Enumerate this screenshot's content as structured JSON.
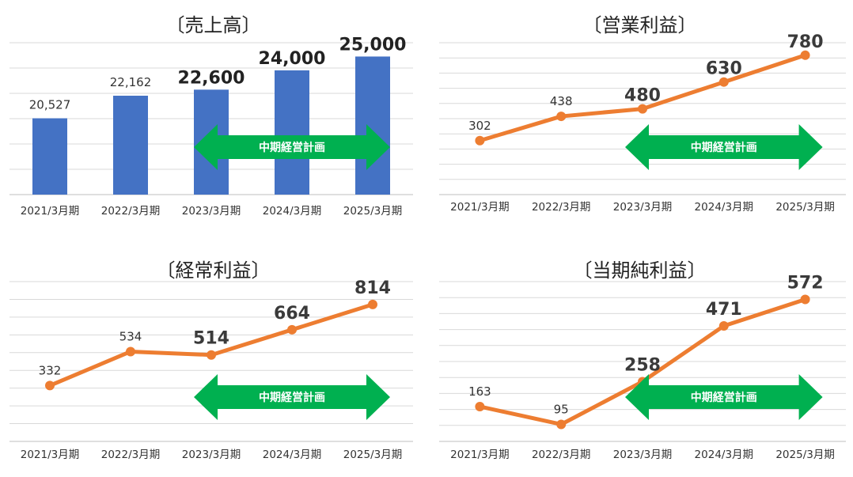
{
  "colors": {
    "bar": "#4472C4",
    "line": "#ED7D31",
    "arrow": "#00B050",
    "grid": "#D9D9D9",
    "axis": "#BFBFBF"
  },
  "chart_data": [
    {
      "type": "bar",
      "title": "〔売上高〕",
      "categories": [
        "2021/3月期",
        "2022/3月期",
        "2023/3月期",
        "2024/3月期",
        "2025/3月期"
      ],
      "values": [
        20527,
        22162,
        22600,
        24000,
        25000
      ],
      "value_labels": [
        "20,527",
        "22,162",
        "22,600",
        "24,000",
        "25,000"
      ],
      "emphasized_from_index": 2,
      "ylim": [
        15000,
        26000
      ],
      "grid": true,
      "annotation": {
        "label": "中期経営計画",
        "from_index": 2,
        "to_index": 4
      }
    },
    {
      "type": "line",
      "title": "〔営業利益〕",
      "categories": [
        "2021/3月期",
        "2022/3月期",
        "2023/3月期",
        "2024/3月期",
        "2025/3月期"
      ],
      "values": [
        302,
        438,
        480,
        630,
        780
      ],
      "value_labels": [
        "302",
        "438",
        "480",
        "630",
        "780"
      ],
      "emphasized_from_index": 2,
      "ylim": [
        0,
        850
      ],
      "grid": true,
      "annotation": {
        "label": "中期経営計画",
        "from_index": 2,
        "to_index": 4
      }
    },
    {
      "type": "line",
      "title": "〔経常利益〕",
      "categories": [
        "2021/3月期",
        "2022/3月期",
        "2023/3月期",
        "2024/3月期",
        "2025/3月期"
      ],
      "values": [
        332,
        534,
        514,
        664,
        814
      ],
      "value_labels": [
        "332",
        "534",
        "514",
        "664",
        "814"
      ],
      "emphasized_from_index": 2,
      "ylim": [
        0,
        950
      ],
      "grid": true,
      "annotation": {
        "label": "中期経営計画",
        "from_index": 2,
        "to_index": 4
      }
    },
    {
      "type": "line",
      "title": "〔当期純利益〕",
      "categories": [
        "2021/3月期",
        "2022/3月期",
        "2023/3月期",
        "2024/3月期",
        "2025/3月期"
      ],
      "values": [
        163,
        95,
        258,
        471,
        572
      ],
      "value_labels": [
        "163",
        "95",
        "258",
        "471",
        "572"
      ],
      "emphasized_from_index": 2,
      "ylim": [
        30,
        640
      ],
      "grid": true,
      "annotation": {
        "label": "中期経営計画",
        "from_index": 2,
        "to_index": 4
      }
    }
  ]
}
